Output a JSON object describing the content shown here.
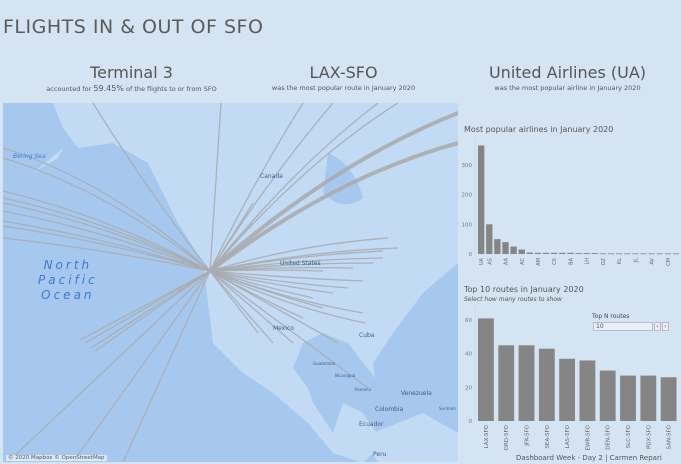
{
  "title": "FLIGHTS IN & OUT OF SFO",
  "kpis": [
    {
      "headline": "Terminal 3",
      "sub_pre": "accounted for ",
      "sub_value": "59.45%",
      "sub_post": " of the flights to or from SFO"
    },
    {
      "headline": "LAX-SFO",
      "sub": "was the most popular route in January 2020"
    },
    {
      "headline": "United Airlines (UA)",
      "sub": "was the most popular airline in January 2020"
    }
  ],
  "map": {
    "labels": {
      "bering": "Bering Sea",
      "canada": "Canada",
      "us": "United States",
      "mexico": "Mexico",
      "cuba": "Cuba",
      "guatemala": "Guatemala",
      "nicaragua": "Nicaragua",
      "panama": "Panama",
      "venezuela": "Venezuela",
      "colombia": "Colombia",
      "ecuador": "Ecuador",
      "peru": "Peru",
      "suriname": "Surinam",
      "ocean": "North Pacific Ocean"
    },
    "ocean_lines": [
      "North",
      "Pacific",
      "Ocean"
    ],
    "attribution": "© 2020 Mapbox © OpenStreetMap",
    "route_color": "#a9acb0"
  },
  "chart_data": [
    {
      "type": "bar",
      "title": "Most popular airlines in January 2020",
      "categories": [
        "UA",
        "AS",
        "",
        "AA",
        "",
        "AC",
        "",
        "AM",
        "",
        "CX",
        "",
        "BA",
        "",
        "LH",
        "",
        "OZ",
        "",
        "KL",
        "",
        "JL",
        "",
        "AV",
        "",
        "CM",
        ""
      ],
      "values": [
        365,
        100,
        50,
        40,
        25,
        15,
        5,
        4,
        4,
        4,
        4,
        4,
        3,
        3,
        3,
        2,
        2,
        2,
        2,
        2,
        2,
        2,
        2,
        2,
        2
      ],
      "ylim": [
        0,
        380
      ],
      "yticks": [
        0,
        100,
        200,
        300
      ],
      "bar_color": "#858585"
    },
    {
      "type": "bar",
      "title": "Top 10 routes in January 2020",
      "subtitle": "Select how many routes to show",
      "categories": [
        "LAX-SFO",
        "ORD-SFO",
        "JFK-SFO",
        "SEA-SFO",
        "LAS-SFO",
        "EWR-SFO",
        "DEN-SFO",
        "SLC-SFO",
        "PDX-SFO",
        "SAN-SFO"
      ],
      "values": [
        61,
        45,
        45,
        43,
        37,
        36,
        30,
        27,
        27,
        26
      ],
      "ylim": [
        0,
        66
      ],
      "yticks": [
        0,
        20,
        40,
        60
      ],
      "bar_color": "#858585"
    }
  ],
  "control": {
    "label": "Top N routes",
    "value": "10",
    "prev": "‹",
    "next": "›"
  },
  "footer": "Dashboard Week - Day 2  |  Carmen Repari"
}
